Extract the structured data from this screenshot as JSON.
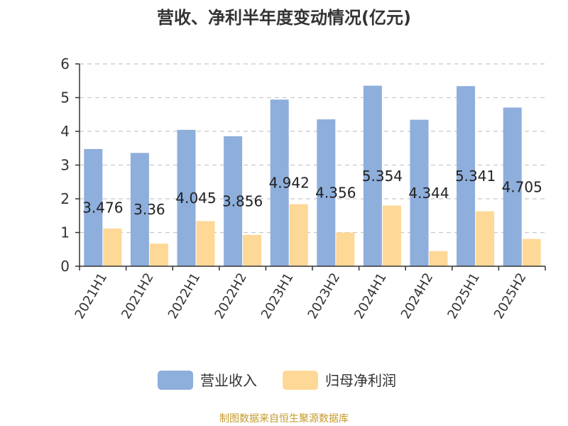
{
  "chart_data": {
    "type": "bar",
    "title": "营收、净利半年度变动情况(亿元)",
    "categories": [
      "2021H1",
      "2021H2",
      "2022H1",
      "2022H2",
      "2023H1",
      "2023H2",
      "2024H1",
      "2024H2",
      "2025H1",
      "2025H2"
    ],
    "series": [
      {
        "name": "营业收入",
        "color": "#8eaedc",
        "values": [
          3.476,
          3.36,
          4.045,
          3.856,
          4.942,
          4.356,
          5.354,
          4.344,
          5.341,
          4.705
        ],
        "labels": [
          "3.476",
          "3.36",
          "4.045",
          "3.856",
          "4.942",
          "4.356",
          "5.354",
          "4.344",
          "5.341",
          "4.705"
        ]
      },
      {
        "name": "归母净利润",
        "color": "#fed897",
        "values": [
          1.12,
          0.67,
          1.34,
          0.93,
          1.84,
          1.0,
          1.8,
          0.45,
          1.63,
          0.81
        ]
      }
    ],
    "ylim": [
      0,
      6
    ],
    "yticks": [
      "0",
      "1",
      "2",
      "3",
      "4",
      "5",
      "6"
    ],
    "grid": true,
    "legend_position": "bottom"
  },
  "source": "制图数据来自恒生聚源数据库"
}
